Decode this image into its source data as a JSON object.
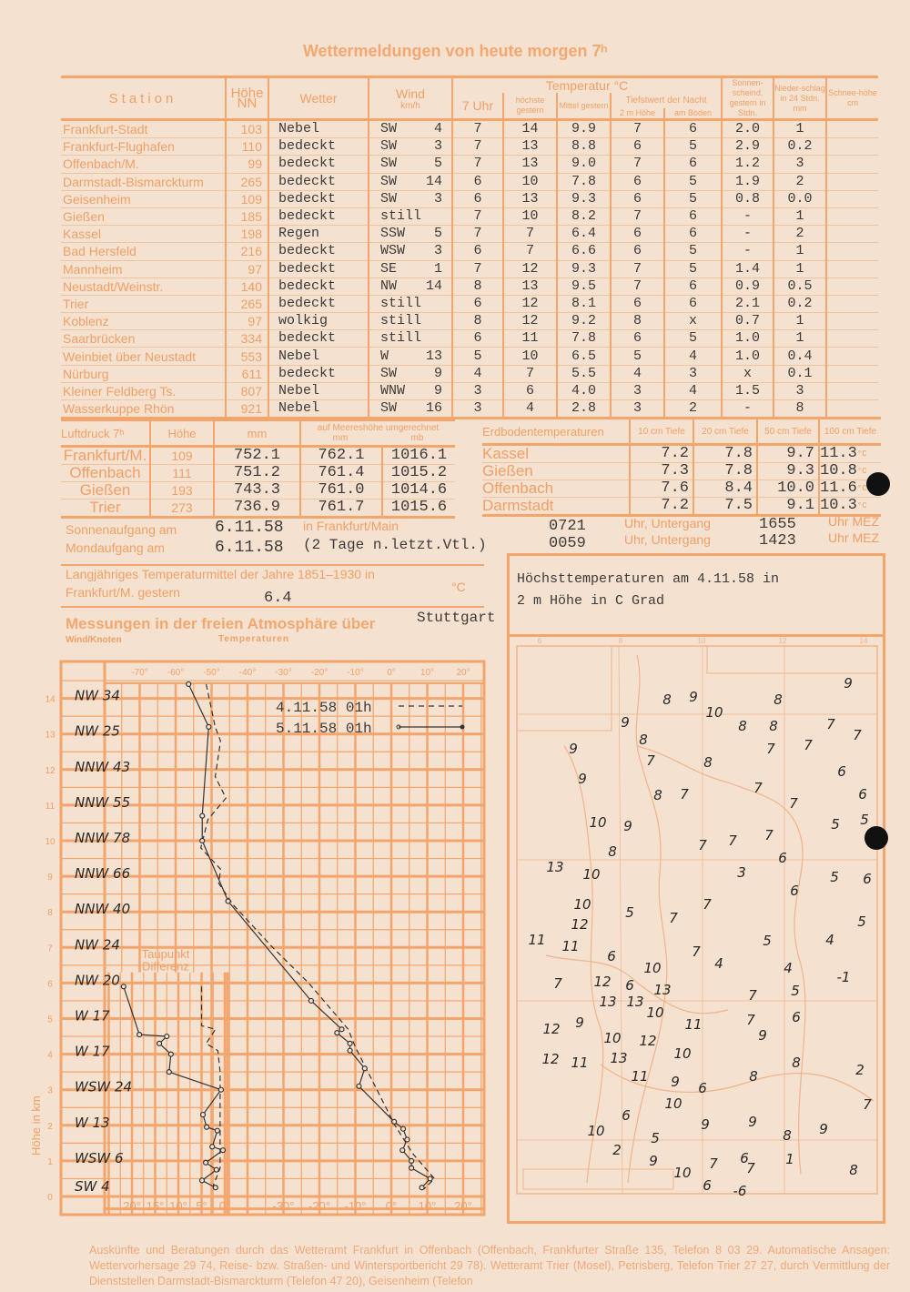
{
  "title": "Wettermeldungen von heute morgen 7ʰ",
  "stations_table": {
    "headers": {
      "station": "Station",
      "height": "Höhe NN",
      "weather": "Wetter",
      "wind": "Wind",
      "wind_unit": "km/h",
      "temperature": "Temperatur °C",
      "t7": "7 Uhr",
      "max": "höchste gestern",
      "mean": "Mittel gestern",
      "min_night": "Tiefstwert der Nacht",
      "min_2m": "2 m Höhe",
      "min_ground": "am Boden",
      "sunshine": "Sonnen-scheind. gestern in Stdn.",
      "precip": "Nieder-schlag in 24 Stdn. mm",
      "snow": "Schnee-höhe cm"
    },
    "rows": [
      [
        "Frankfurt-Stadt",
        "103",
        "Nebel",
        "SW",
        "4",
        "7",
        "14",
        "9.9",
        "7",
        "6",
        "2.0",
        "1",
        ""
      ],
      [
        "Frankfurt-Flughafen",
        "110",
        "bedeckt",
        "SW",
        "3",
        "7",
        "13",
        "8.8",
        "6",
        "5",
        "2.9",
        "0.2",
        ""
      ],
      [
        "Offenbach/M.",
        "99",
        "bedeckt",
        "SW",
        "5",
        "7",
        "13",
        "9.0",
        "7",
        "6",
        "1.2",
        "3",
        ""
      ],
      [
        "Darmstadt-Bismarckturm",
        "265",
        "bedeckt",
        "SW",
        "14",
        "6",
        "10",
        "7.8",
        "6",
        "5",
        "1.9",
        "2",
        ""
      ],
      [
        "Geisenheim",
        "109",
        "bedeckt",
        "SW",
        "3",
        "6",
        "13",
        "9.3",
        "6",
        "5",
        "0.8",
        "0.0",
        ""
      ],
      [
        "Gießen",
        "185",
        "bedeckt",
        "still",
        "",
        "7",
        "10",
        "8.2",
        "7",
        "6",
        "-",
        "1",
        ""
      ],
      [
        "Kassel",
        "198",
        "Regen",
        "SSW",
        "5",
        "7",
        "7",
        "6.4",
        "6",
        "6",
        "-",
        "2",
        ""
      ],
      [
        "Bad Hersfeld",
        "216",
        "bedeckt",
        "WSW",
        "3",
        "6",
        "7",
        "6.6",
        "6",
        "5",
        "-",
        "1",
        ""
      ],
      [
        "Mannheim",
        "97",
        "bedeckt",
        "SE",
        "1",
        "7",
        "12",
        "9.3",
        "7",
        "5",
        "1.4",
        "1",
        ""
      ],
      [
        "Neustadt/Weinstr.",
        "140",
        "bedeckt",
        "NW",
        "14",
        "8",
        "13",
        "9.5",
        "7",
        "6",
        "0.9",
        "0.5",
        ""
      ],
      [
        "Trier",
        "265",
        "bedeckt",
        "still",
        "",
        "6",
        "12",
        "8.1",
        "6",
        "6",
        "2.1",
        "0.2",
        ""
      ],
      [
        "Koblenz",
        "97",
        "wolkig",
        "still",
        "",
        "8",
        "12",
        "9.2",
        "8",
        "x",
        "0.7",
        "1",
        ""
      ],
      [
        "Saarbrücken",
        "334",
        "bedeckt",
        "still",
        "",
        "6",
        "11",
        "7.8",
        "6",
        "5",
        "1.0",
        "1",
        ""
      ],
      [
        "Weinbiet über Neustadt",
        "553",
        "Nebel",
        "W",
        "13",
        "5",
        "10",
        "6.5",
        "5",
        "4",
        "1.0",
        "0.4",
        ""
      ],
      [
        "Nürburg",
        "611",
        "bedeckt",
        "SW",
        "9",
        "4",
        "7",
        "5.5",
        "4",
        "3",
        "x",
        "0.1",
        ""
      ],
      [
        "Kleiner Feldberg Ts.",
        "807",
        "Nebel",
        "WNW",
        "9",
        "3",
        "6",
        "4.0",
        "3",
        "4",
        "1.5",
        "3",
        ""
      ],
      [
        "Wasserkuppe Rhön",
        "921",
        "Nebel",
        "SW",
        "16",
        "3",
        "4",
        "2.8",
        "3",
        "2",
        "-",
        "8",
        ""
      ]
    ]
  },
  "pressure_table": {
    "headers": {
      "label": "Luftdruck 7ʰ",
      "height": "Höhe",
      "mm": "mm",
      "sea_level": "auf Meereshöhe umgerechnet",
      "sea_mm": "mm",
      "sea_mb": "mb"
    },
    "rows": [
      [
        "Frankfurt/M.",
        "109",
        "752.1",
        "762.1",
        "1016.1"
      ],
      [
        "Offenbach",
        "111",
        "751.2",
        "761.4",
        "1015.2"
      ],
      [
        "Gießen",
        "193",
        "743.3",
        "761.0",
        "1014.6"
      ],
      [
        "Trier",
        "273",
        "736.9",
        "761.7",
        "1015.6"
      ]
    ]
  },
  "soil_table": {
    "headers": [
      "Erdbodentemperaturen",
      "10 cm Tiefe",
      "20 cm Tiefe",
      "50 cm Tiefe",
      "100 cm Tiefe"
    ],
    "unit": "°C",
    "rows": [
      [
        "Kassel",
        "7.2",
        "7.8",
        "9.7",
        "11.3"
      ],
      [
        "Gießen",
        "7.3",
        "7.8",
        "9.3",
        "10.8"
      ],
      [
        "Offenbach",
        "7.6",
        "8.4",
        "10.0",
        "11.6"
      ],
      [
        "Darmstadt",
        "7.2",
        "7.5",
        "9.1",
        "10.3"
      ]
    ]
  },
  "sun_moon": {
    "sunrise_label": "Sonnenaufgang am",
    "sunrise_date": "6.11.58",
    "location": "in Frankfurt/Main",
    "sunrise_time": "0721",
    "set_label": "Uhr, Untergang",
    "sunset_time": "1655",
    "tz": "Uhr MEZ",
    "moonrise_label": "Mondaufgang am",
    "moonrise_date": "6.11.58",
    "moon_note": "(2 Tage n.letzt.Vtl.)",
    "moonrise_time": "0059",
    "moonset_time": "1423"
  },
  "long_term": {
    "line1": "Langjähriges Temperaturmittel der Jahre 1851–1930 in",
    "line2": "Frankfurt/M. gestern",
    "value": "6.4",
    "unit": "°C"
  },
  "atmosphere": {
    "title": "Messungen in der freien Atmosphäre über",
    "station": "Stuttgart",
    "wind_label": "Wind/Knoten",
    "temp_label": "Temperaturen"
  },
  "chart_data": {
    "type": "line",
    "y_axis": {
      "label": "Höhe in km",
      "range": [
        0,
        14.5
      ],
      "ticks": [
        "0",
        "1",
        "2",
        "3",
        "4",
        "5",
        "6",
        "7",
        "8",
        "9",
        "10",
        "11",
        "12",
        "13",
        "14"
      ]
    },
    "x_axis_temperature": {
      "range": [
        -75,
        25
      ],
      "top_ticks": [
        "-70°",
        "-60°",
        "-50°",
        "-40°",
        "-30°",
        "-20°",
        "-10°",
        "0°",
        "10°",
        "20°"
      ],
      "bottom_ticks": [
        "-30°",
        "-20°",
        "-10°",
        "0°",
        "10°",
        "20°"
      ]
    },
    "x_axis_dewpoint": {
      "label": "Taupunkt Differenz",
      "range": [
        0,
        25
      ],
      "ticks": [
        "20°",
        "15°",
        "10°",
        "5°",
        "0°"
      ]
    },
    "grid": true,
    "winds": [
      {
        "height": 14,
        "text": "NW 34"
      },
      {
        "height": 13,
        "text": "NW 25"
      },
      {
        "height": 12,
        "text": "NNW 43"
      },
      {
        "height": 11,
        "text": "NNW 55"
      },
      {
        "height": 10,
        "text": "NNW 78"
      },
      {
        "height": 9,
        "text": "NNW 66"
      },
      {
        "height": 8,
        "text": "NNW 40"
      },
      {
        "height": 7,
        "text": "NW 24"
      },
      {
        "height": 6,
        "text": "NW 20"
      },
      {
        "height": 5,
        "text": "W 17"
      },
      {
        "height": 4,
        "text": "W 17"
      },
      {
        "height": 3,
        "text": "WSW 24"
      },
      {
        "height": 2,
        "text": "W 13"
      },
      {
        "height": 1,
        "text": "WSW 6"
      },
      {
        "height": 0.2,
        "text": "SW 4"
      }
    ],
    "series": [
      {
        "name": "4.11.58 01h",
        "style": "dashed",
        "kind": "temperature",
        "points": [
          [
            -51.5,
            14.4
          ],
          [
            -49,
            13.2
          ],
          [
            -47.5,
            12.8
          ],
          [
            -49,
            11.8
          ],
          [
            -46,
            11.2
          ],
          [
            -51,
            10.6
          ],
          [
            -53,
            9.8
          ],
          [
            -47.5,
            9.2
          ],
          [
            -48,
            8.8
          ],
          [
            -44,
            8.2
          ],
          [
            -33,
            7
          ],
          [
            -23,
            6
          ],
          [
            -12,
            4.7
          ],
          [
            -10,
            4.2
          ],
          [
            -4,
            3
          ],
          [
            1,
            2
          ],
          [
            6,
            1.2
          ],
          [
            12,
            0.5
          ],
          [
            9,
            0.2
          ]
        ]
      },
      {
        "name": "5.11.58 01h",
        "style": "solid",
        "kind": "temperature",
        "points": [
          [
            -56.4,
            14.4
          ],
          [
            -50.8,
            13.2
          ],
          [
            -52.6,
            10.7
          ],
          [
            -52.6,
            10.0
          ],
          [
            -45.4,
            8.3
          ],
          [
            -22.3,
            5.5
          ],
          [
            -13.8,
            4.7
          ],
          [
            -15.1,
            4.6
          ],
          [
            -11.5,
            4.3
          ],
          [
            -11.5,
            4.1
          ],
          [
            -7.4,
            3.6
          ],
          [
            -9,
            3.1
          ],
          [
            0.8,
            2.1
          ],
          [
            3.3,
            1.9
          ],
          [
            4.4,
            1.6
          ],
          [
            3.1,
            1.3
          ],
          [
            5.6,
            1.0
          ],
          [
            5.6,
            0.8
          ],
          [
            10.8,
            0.5
          ],
          [
            8.5,
            0.25
          ]
        ]
      },
      {
        "name": "4.11.58 01h",
        "style": "dashed",
        "kind": "dewpoint_difference",
        "points": [
          [
            5,
            5.9
          ],
          [
            5,
            4.8
          ],
          [
            2,
            4.7
          ],
          [
            4,
            4.3
          ],
          [
            1.5,
            4.1
          ],
          [
            1,
            3.5
          ],
          [
            1,
            2.5
          ],
          [
            1,
            1.5
          ],
          [
            1,
            0.8
          ],
          [
            2.5,
            0.3
          ]
        ]
      },
      {
        "name": "5.11.58 01h",
        "style": "solid",
        "kind": "dewpoint_difference",
        "points": [
          [
            21.8,
            5.9
          ],
          [
            18.4,
            4.55
          ],
          [
            12.5,
            4.5
          ],
          [
            14.1,
            4.3
          ],
          [
            11.6,
            4.0
          ],
          [
            12,
            3.5
          ],
          [
            0.8,
            3.0
          ],
          [
            4.7,
            2.3
          ],
          [
            3.9,
            1.95
          ],
          [
            1.6,
            1.85
          ],
          [
            2.7,
            1.4
          ],
          [
            0.4,
            1.3
          ],
          [
            4.1,
            0.95
          ],
          [
            1.8,
            0.75
          ],
          [
            4.9,
            0.45
          ],
          [
            2,
            0.25
          ]
        ]
      }
    ],
    "legend": {
      "placement": "top-right",
      "entries": [
        "4.11.58 01h",
        "5.11.58 01h"
      ]
    }
  },
  "map": {
    "caption": "Höchsttemperaturen am 4.11.58 in 2 m Höhe in C Grad",
    "caption_line1": "Höchsttemperaturen am 4.11.58 in",
    "caption_line2": "2 m Höhe in C Grad",
    "top_ticks": [
      "6",
      "8",
      "10",
      "12",
      "14"
    ],
    "values": [
      "8",
      "9",
      "9",
      "8",
      "10",
      "9",
      "8",
      "8",
      "7",
      "7",
      "9",
      "8",
      "7",
      "9",
      "8",
      "7",
      "7",
      "6",
      "8",
      "7",
      "7",
      "7",
      "6",
      "10",
      "9",
      "5",
      "5",
      "7",
      "7",
      "7",
      "8",
      "6",
      "13",
      "10",
      "3",
      "5",
      "6",
      "6",
      "10",
      "5",
      "7",
      "7",
      "5",
      "12",
      "11",
      "11",
      "6",
      "10",
      "7",
      "4",
      "5",
      "4",
      "4",
      "-1",
      "7",
      "12",
      "6",
      "13",
      "5",
      "7",
      "13",
      "13",
      "10",
      "6",
      "7",
      "12",
      "9",
      "11",
      "9",
      "10",
      "12",
      "10",
      "12",
      "11",
      "13",
      "8",
      "2",
      "11",
      "9",
      "8",
      "6",
      "10",
      "6",
      "7",
      "9",
      "9",
      "10",
      "9",
      "8",
      "5",
      "2",
      "9",
      "6",
      "1",
      "10",
      "7",
      "7",
      "8",
      "6",
      "-6"
    ]
  },
  "footer": "Auskünfte und Beratungen durch das Wetteramt Frankfurt in Offenbach (Offenbach, Frankfurter Straße 135, Telefon 8 03 29. Automatische Ansagen: Wettervorhersage 29 74, Reise- bzw. Straßen- und Wintersportbericht 29 78). Wetteramt Trier (Mosel), Petrisberg, Telefon Trier 27 27, durch Vermittlung der Dienststellen Darmstadt-Bismarckturm (Telefon 47 20), Geisenheim (Telefon",
  "colors": {
    "paper": "#f4e1d0",
    "print_orange": "#f0a066",
    "grid_orange": "#f3a56c",
    "typewriter": "#3d3a38"
  }
}
